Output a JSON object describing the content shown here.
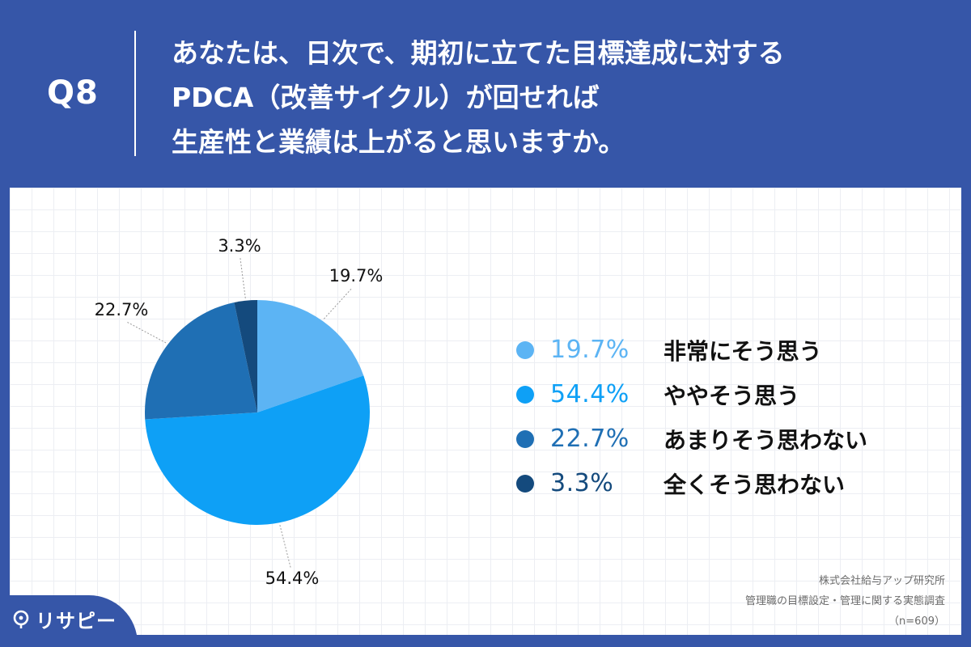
{
  "header": {
    "qnum": "Q8",
    "question_lines": [
      "あなたは、日次で、期初に立てた目標達成に対する",
      "PDCA（改善サイクル）が回せれば",
      "生産性と業績は上がると思いますか。"
    ]
  },
  "chart_data": {
    "type": "pie",
    "title": "",
    "start_angle": "12 o'clock, clockwise",
    "categories": [
      "非常にそう思う",
      "ややそう思う",
      "あまりそう思わない",
      "全くそう思わない"
    ],
    "values": [
      19.7,
      54.4,
      22.7,
      3.3
    ],
    "labels": [
      "19.7%",
      "54.4%",
      "22.7%",
      "3.3%"
    ],
    "colors": [
      "#5cb4f4",
      "#0ea0f6",
      "#1f6fb4",
      "#144a7d"
    ],
    "legend_placement": "right"
  },
  "legend": [
    {
      "pct": "19.7%",
      "label": "非常にそう思う",
      "color": "#5cb4f4"
    },
    {
      "pct": "54.4%",
      "label": "ややそう思う",
      "color": "#0ea0f6"
    },
    {
      "pct": "22.7%",
      "label": "あまりそう思わない",
      "color": "#1f6fb4"
    },
    {
      "pct": "3.3%",
      "label": "全くそう思わない",
      "color": "#144a7d"
    }
  ],
  "source": {
    "org": "株式会社給与アップ研究所",
    "survey": "管理職の目標設定・管理に関する実態調査",
    "n": "（n=609）"
  },
  "logo": {
    "text": "リサピー"
  }
}
